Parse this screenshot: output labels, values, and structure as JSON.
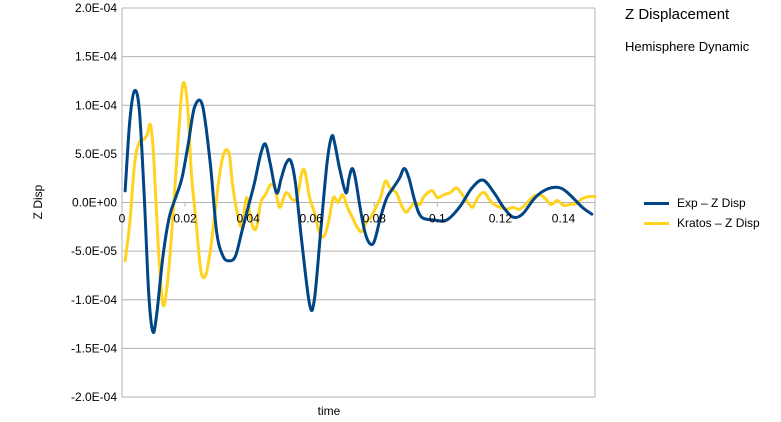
{
  "chart_data": {
    "type": "line",
    "title": "Z Displacement",
    "subtitle": "Hemisphere Dynamic",
    "xlabel": "time",
    "ylabel": "Z Disp",
    "xlim": [
      0,
      0.15
    ],
    "ylim": [
      -0.0002,
      0.0002
    ],
    "x_ticks": [
      0,
      0.02,
      0.04,
      0.06,
      0.08,
      0.1,
      0.12,
      0.14
    ],
    "x_tick_labels": [
      "0",
      "0.02",
      "0.04",
      "0.06",
      "0.08",
      "0.1",
      "0.12",
      "0.14"
    ],
    "y_ticks": [
      0.0002,
      0.00015,
      0.0001,
      5e-05,
      0,
      -5e-05,
      -0.0001,
      -0.00015,
      -0.0002
    ],
    "y_tick_labels": [
      "2.0E-04",
      "1.5E-04",
      "1.0E-04",
      "5.0E-05",
      "0.0E+00",
      "-5.0E-05",
      "-1.0E-04",
      "-1.5E-04",
      "-2.0E-04"
    ],
    "grid": "horizontal",
    "legend_position": "right",
    "series": [
      {
        "name": "Exp – Z Disp",
        "color": "#004586",
        "points": [
          [
            0.001,
            1.2e-05
          ],
          [
            0.0025,
            8.5e-05
          ],
          [
            0.004,
            0.000115
          ],
          [
            0.0055,
            9.5e-05
          ],
          [
            0.007,
            1e-05
          ],
          [
            0.0085,
            -9.5e-05
          ],
          [
            0.0098,
            -0.000133
          ],
          [
            0.011,
            -0.000115
          ],
          [
            0.013,
            -5.5e-05
          ],
          [
            0.015,
            -1.5e-05
          ],
          [
            0.017,
            5e-06
          ],
          [
            0.019,
            2.5e-05
          ],
          [
            0.021,
            6e-05
          ],
          [
            0.023,
            9.8e-05
          ],
          [
            0.0255,
            0.0001
          ],
          [
            0.028,
            4e-05
          ],
          [
            0.03,
            -3e-05
          ],
          [
            0.032,
            -5.5e-05
          ],
          [
            0.034,
            -6e-05
          ],
          [
            0.036,
            -5.5e-05
          ],
          [
            0.038,
            -3e-05
          ],
          [
            0.04,
            -5e-06
          ],
          [
            0.042,
            2e-05
          ],
          [
            0.044,
            5e-05
          ],
          [
            0.0455,
            6e-05
          ],
          [
            0.047,
            4e-05
          ],
          [
            0.049,
            1e-05
          ],
          [
            0.0505,
            2.5e-05
          ],
          [
            0.052,
            4e-05
          ],
          [
            0.0535,
            4.3e-05
          ],
          [
            0.055,
            2e-05
          ],
          [
            0.057,
            -4e-05
          ],
          [
            0.0595,
            -0.000105
          ],
          [
            0.061,
            -0.0001
          ],
          [
            0.063,
            -3e-05
          ],
          [
            0.065,
            4e-05
          ],
          [
            0.0665,
            6.8e-05
          ],
          [
            0.0675,
            6e-05
          ],
          [
            0.069,
            3.5e-05
          ],
          [
            0.071,
            1e-05
          ],
          [
            0.072,
            2.5e-05
          ],
          [
            0.073,
            3.5e-05
          ],
          [
            0.074,
            2.5e-05
          ],
          [
            0.0755,
            -5e-06
          ],
          [
            0.077,
            -3e-05
          ],
          [
            0.0785,
            -4.2e-05
          ],
          [
            0.08,
            -4e-05
          ],
          [
            0.082,
            -1.5e-05
          ],
          [
            0.084,
            5e-06
          ],
          [
            0.086,
            1.5e-05
          ],
          [
            0.088,
            2.5e-05
          ],
          [
            0.0895,
            3.5e-05
          ],
          [
            0.091,
            2.5e-05
          ],
          [
            0.093,
            0
          ],
          [
            0.095,
            -1.5e-05
          ],
          [
            0.099,
            -1.8e-05
          ],
          [
            0.103,
            -1.8e-05
          ],
          [
            0.107,
            -5e-06
          ],
          [
            0.111,
            1.5e-05
          ],
          [
            0.1145,
            2.3e-05
          ],
          [
            0.118,
            1e-05
          ],
          [
            0.121,
            -5e-06
          ],
          [
            0.124,
            -1.5e-05
          ],
          [
            0.127,
            -1.2e-05
          ],
          [
            0.131,
            5e-06
          ],
          [
            0.135,
            1.4e-05
          ],
          [
            0.139,
            1.5e-05
          ],
          [
            0.142,
            8e-06
          ],
          [
            0.146,
            -5e-06
          ],
          [
            0.149,
            -1.2e-05
          ]
        ]
      },
      {
        "name": "Kratos – Z Disp",
        "color": "#ffd320",
        "points": [
          [
            0.001,
            -6e-05
          ],
          [
            0.0025,
            -2e-05
          ],
          [
            0.004,
            4e-05
          ],
          [
            0.0055,
            6.2e-05
          ],
          [
            0.007,
            6.5e-05
          ],
          [
            0.008,
            7e-05
          ],
          [
            0.009,
            8e-05
          ],
          [
            0.01,
            5e-05
          ],
          [
            0.0115,
            -4.5e-05
          ],
          [
            0.013,
            -0.000105
          ],
          [
            0.0145,
            -8e-05
          ],
          [
            0.016,
            -2e-05
          ],
          [
            0.0175,
            5e-05
          ],
          [
            0.019,
            0.000115
          ],
          [
            0.02,
            0.00012
          ],
          [
            0.021,
            9e-05
          ],
          [
            0.022,
            3e-05
          ],
          [
            0.0235,
            -2e-05
          ],
          [
            0.025,
            -7e-05
          ],
          [
            0.0265,
            -7.5e-05
          ],
          [
            0.028,
            -5e-05
          ],
          [
            0.0295,
            -1e-05
          ],
          [
            0.031,
            3e-05
          ],
          [
            0.0325,
            5.2e-05
          ],
          [
            0.034,
            5e-05
          ],
          [
            0.035,
            2e-05
          ],
          [
            0.0365,
            -1e-05
          ],
          [
            0.038,
            -2.5e-05
          ],
          [
            0.0395,
            5e-06
          ],
          [
            0.041,
            -2e-05
          ],
          [
            0.0425,
            -2.7e-05
          ],
          [
            0.044,
            0
          ],
          [
            0.0455,
            8e-06
          ],
          [
            0.047,
            1.8e-05
          ],
          [
            0.0485,
            1.5e-05
          ],
          [
            0.05,
            -5e-06
          ],
          [
            0.052,
            1e-05
          ],
          [
            0.054,
            3e-06
          ],
          [
            0.0555,
            5e-06
          ],
          [
            0.057,
            3e-05
          ],
          [
            0.058,
            3.2e-05
          ],
          [
            0.0595,
            5e-06
          ],
          [
            0.061,
            -1e-05
          ],
          [
            0.0625,
            -3e-05
          ],
          [
            0.064,
            -3.5e-05
          ],
          [
            0.0655,
            -2e-05
          ],
          [
            0.067,
            5e-06
          ],
          [
            0.0685,
            0
          ],
          [
            0.07,
            8e-06
          ],
          [
            0.0715,
            -5e-06
          ],
          [
            0.073,
            -1.5e-05
          ],
          [
            0.0745,
            -2.5e-05
          ],
          [
            0.076,
            -3e-05
          ],
          [
            0.0775,
            -2e-05
          ],
          [
            0.079,
            -1.5e-05
          ],
          [
            0.0805,
            -5e-06
          ],
          [
            0.082,
            5e-06
          ],
          [
            0.0835,
            2.2e-05
          ],
          [
            0.085,
            1.5e-05
          ],
          [
            0.087,
            1e-05
          ],
          [
            0.0885,
            -2e-06
          ],
          [
            0.09,
            -1e-05
          ],
          [
            0.0915,
            -5e-06
          ],
          [
            0.093,
            0
          ],
          [
            0.0945,
            -2e-06
          ],
          [
            0.0955,
            5e-06
          ],
          [
            0.097,
            1e-05
          ],
          [
            0.0985,
            1.2e-05
          ],
          [
            0.1,
            5e-06
          ],
          [
            0.102,
            8e-06
          ],
          [
            0.104,
            1e-05
          ],
          [
            0.106,
            1.5e-05
          ],
          [
            0.1075,
            1e-05
          ],
          [
            0.109,
            3e-06
          ],
          [
            0.111,
            -5e-06
          ],
          [
            0.112,
            0
          ],
          [
            0.1135,
            8e-06
          ],
          [
            0.115,
            1e-05
          ],
          [
            0.1165,
            3e-06
          ],
          [
            0.118,
            -2e-06
          ],
          [
            0.12,
            -5e-06
          ],
          [
            0.122,
            -7e-06
          ],
          [
            0.124,
            -5e-06
          ],
          [
            0.126,
            -7e-06
          ],
          [
            0.128,
            -2e-06
          ],
          [
            0.13,
            5e-06
          ],
          [
            0.132,
            8e-06
          ],
          [
            0.134,
            5e-06
          ],
          [
            0.136,
            -2e-06
          ],
          [
            0.138,
            2e-06
          ],
          [
            0.14,
            -3e-06
          ],
          [
            0.142,
            -2e-06
          ],
          [
            0.144,
            -1e-06
          ],
          [
            0.146,
            4e-06
          ],
          [
            0.148,
            6e-06
          ],
          [
            0.15,
            6e-06
          ]
        ]
      }
    ]
  }
}
